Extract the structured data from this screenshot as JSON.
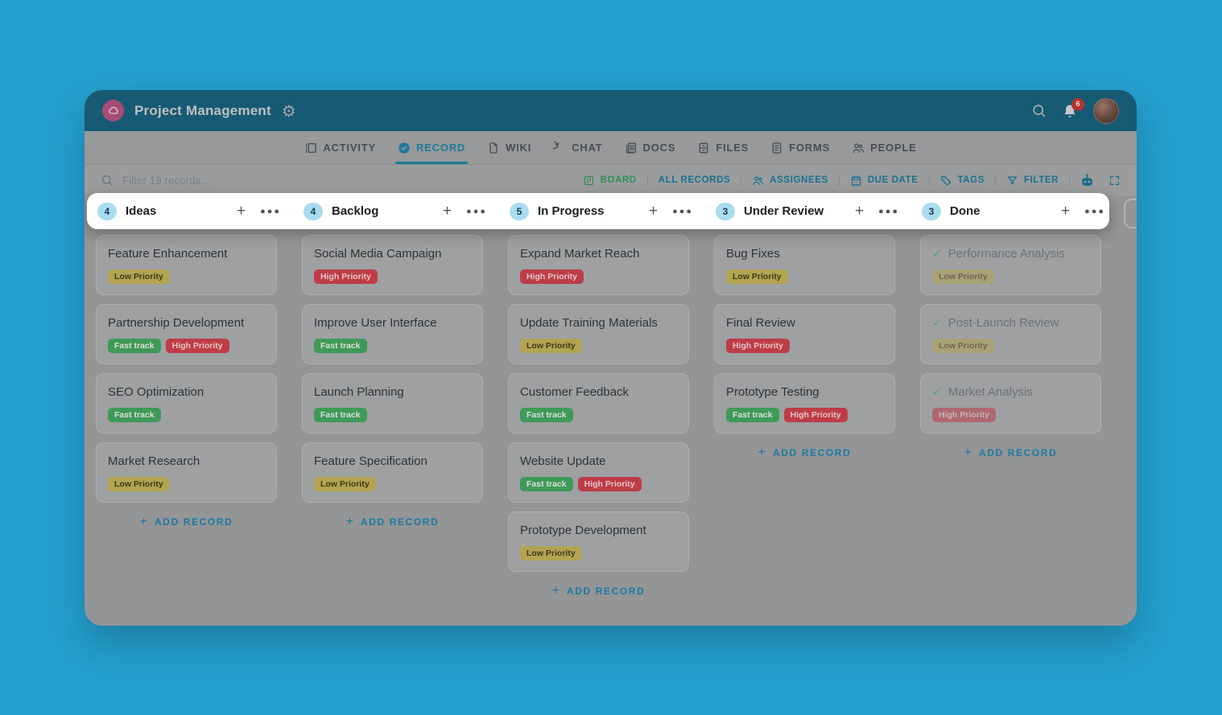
{
  "colors": {
    "page_background": "#24A0CF",
    "header_background": "#175A73",
    "accent_teal": "#1C7AA0",
    "board_view_green": "#2F8F51",
    "notification_badge_red": "#B3342E",
    "count_badge_blue": "#A9DCEE",
    "tag_low_priority": "#B2A452",
    "tag_fast_track": "#3F9A57",
    "tag_high_priority": "#BE3C46"
  },
  "header": {
    "title": "Project Management",
    "notification_count": "6",
    "logo_icon": "cloud-icon",
    "settings_icon": "gear-icon",
    "search_icon": "search-icon",
    "bell_icon": "bell-icon"
  },
  "tabs": [
    {
      "label": "ACTIVITY",
      "icon": "activity-icon",
      "active": false
    },
    {
      "label": "RECORD",
      "icon": "record-check-icon",
      "active": true
    },
    {
      "label": "WIKI",
      "icon": "wiki-page-icon",
      "active": false
    },
    {
      "label": "CHAT",
      "icon": "chat-bubble-icon",
      "active": false
    },
    {
      "label": "DOCS",
      "icon": "docs-icon",
      "active": false
    },
    {
      "label": "FILES",
      "icon": "files-icon",
      "active": false
    },
    {
      "label": "FORMS",
      "icon": "forms-icon",
      "active": false
    },
    {
      "label": "PEOPLE",
      "icon": "people-icon",
      "active": false
    }
  ],
  "filter_bar": {
    "search_placeholder": "Filter 19 records...",
    "views": [
      {
        "label": "BOARD",
        "icon": "board-view-icon",
        "active": true
      },
      {
        "label": "ALL RECORDS",
        "icon": "",
        "active": false
      },
      {
        "label": "ASSIGNEES",
        "icon": "assignees-icon",
        "active": false
      },
      {
        "label": "DUE DATE",
        "icon": "calendar-icon",
        "active": false
      },
      {
        "label": "TAGS",
        "icon": "tag-icon",
        "active": false
      },
      {
        "label": "FILTER",
        "icon": "funnel-icon",
        "active": false
      }
    ],
    "tools": [
      {
        "icon": "ai-robot-icon"
      },
      {
        "icon": "fullscreen-icon"
      }
    ]
  },
  "board": {
    "add_record_label": "ADD RECORD",
    "add_column_icon": "plus-icon",
    "column_menu_icon": "ellipsis-icon",
    "done_check_icon": "check-icon",
    "columns": [
      {
        "name": "Ideas",
        "count": "4",
        "cards": [
          {
            "title": "Feature Enhancement",
            "done": false,
            "tags": [
              {
                "label": "Low Priority",
                "type": "low"
              }
            ]
          },
          {
            "title": "Partnership Development",
            "done": false,
            "tags": [
              {
                "label": "Fast track",
                "type": "fast"
              },
              {
                "label": "High Priority",
                "type": "high"
              }
            ]
          },
          {
            "title": "SEO Optimization",
            "done": false,
            "tags": [
              {
                "label": "Fast track",
                "type": "fast"
              }
            ]
          },
          {
            "title": "Market Research",
            "done": false,
            "tags": [
              {
                "label": "Low Priority",
                "type": "low"
              }
            ]
          }
        ]
      },
      {
        "name": "Backlog",
        "count": "4",
        "cards": [
          {
            "title": "Social Media Campaign",
            "done": false,
            "tags": [
              {
                "label": "High Priority",
                "type": "high"
              }
            ]
          },
          {
            "title": "Improve User Interface",
            "done": false,
            "tags": [
              {
                "label": "Fast track",
                "type": "fast"
              }
            ]
          },
          {
            "title": "Launch Planning",
            "done": false,
            "tags": [
              {
                "label": "Fast track",
                "type": "fast"
              }
            ]
          },
          {
            "title": "Feature Specification",
            "done": false,
            "tags": [
              {
                "label": "Low Priority",
                "type": "low"
              }
            ]
          }
        ]
      },
      {
        "name": "In Progress",
        "count": "5",
        "cards": [
          {
            "title": "Expand Market Reach",
            "done": false,
            "tags": [
              {
                "label": "High Priority",
                "type": "high"
              }
            ]
          },
          {
            "title": "Update Training Materials",
            "done": false,
            "tags": [
              {
                "label": "Low Priority",
                "type": "low"
              }
            ]
          },
          {
            "title": "Customer Feedback",
            "done": false,
            "tags": [
              {
                "label": "Fast track",
                "type": "fast"
              }
            ]
          },
          {
            "title": "Website Update",
            "done": false,
            "tags": [
              {
                "label": "Fast track",
                "type": "fast"
              },
              {
                "label": "High Priority",
                "type": "high"
              }
            ]
          },
          {
            "title": "Prototype Development",
            "done": false,
            "tags": [
              {
                "label": "Low Priority",
                "type": "low"
              }
            ]
          }
        ]
      },
      {
        "name": "Under Review",
        "count": "3",
        "cards": [
          {
            "title": "Bug Fixes",
            "done": false,
            "tags": [
              {
                "label": "Low Priority",
                "type": "low"
              }
            ]
          },
          {
            "title": "Final Review",
            "done": false,
            "tags": [
              {
                "label": "High Priority",
                "type": "high"
              }
            ]
          },
          {
            "title": "Prototype Testing",
            "done": false,
            "tags": [
              {
                "label": "Fast track",
                "type": "fast"
              },
              {
                "label": "High Priority",
                "type": "high"
              }
            ]
          }
        ]
      },
      {
        "name": "Done",
        "count": "3",
        "cards": [
          {
            "title": "Performance Analysis",
            "done": true,
            "tags": [
              {
                "label": "Low Priority",
                "type": "low"
              }
            ]
          },
          {
            "title": "Post-Launch Review",
            "done": true,
            "tags": [
              {
                "label": "Low Priority",
                "type": "low"
              }
            ]
          },
          {
            "title": "Market Analysis",
            "done": true,
            "tags": [
              {
                "label": "High Priority",
                "type": "high"
              }
            ]
          }
        ]
      }
    ]
  }
}
